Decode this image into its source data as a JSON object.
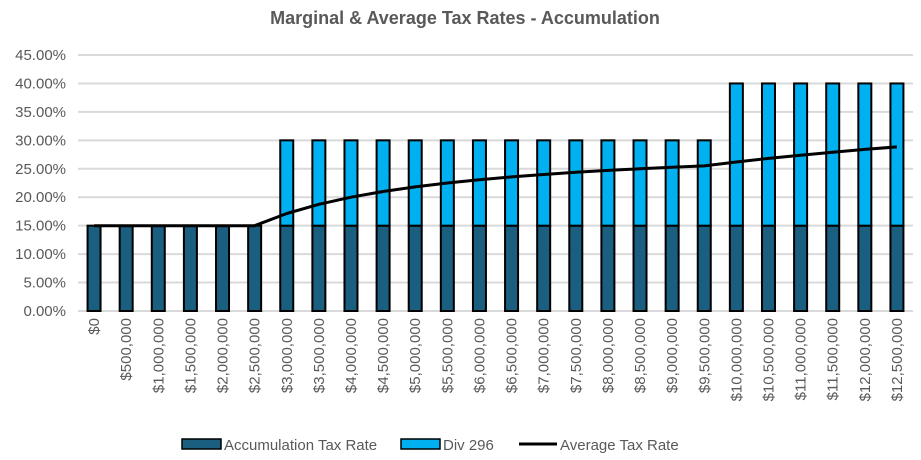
{
  "chart_data": {
    "type": "bar",
    "stacked": true,
    "title": "Marginal & Average Tax Rates - Accumulation",
    "xlabel": "",
    "ylabel": "",
    "ylim": [
      0,
      45
    ],
    "y_ticks": [
      "0.00%",
      "5.00%",
      "10.00%",
      "15.00%",
      "20.00%",
      "25.00%",
      "30.00%",
      "35.00%",
      "40.00%",
      "45.00%"
    ],
    "y_tick_values": [
      0,
      5,
      10,
      15,
      20,
      25,
      30,
      35,
      40,
      45
    ],
    "grid": true,
    "legend_position": "bottom",
    "categories": [
      "$0",
      "$500,000",
      "$1,000,000",
      "$1,500,000",
      "$2,000,000",
      "$2,500,000",
      "$3,000,000",
      "$3,500,000",
      "$4,000,000",
      "$4,500,000",
      "$5,000,000",
      "$5,500,000",
      "$6,000,000",
      "$6,500,000",
      "$7,000,000",
      "$7,500,000",
      "$8,000,000",
      "$8,500,000",
      "$9,000,000",
      "$9,500,000",
      "$10,000,000",
      "$10,500,000",
      "$11,000,000",
      "$11,500,000",
      "$12,000,000",
      "$12,500,000"
    ],
    "series": [
      {
        "name": "Accumulation Tax Rate",
        "kind": "bar",
        "color": "#1a5e80",
        "values": [
          15,
          15,
          15,
          15,
          15,
          15,
          15,
          15,
          15,
          15,
          15,
          15,
          15,
          15,
          15,
          15,
          15,
          15,
          15,
          15,
          15,
          15,
          15,
          15,
          15,
          15
        ]
      },
      {
        "name": "Div 296",
        "kind": "bar",
        "color": "#00b0f0",
        "values": [
          0,
          0,
          0,
          0,
          0,
          0,
          15,
          15,
          15,
          15,
          15,
          15,
          15,
          15,
          15,
          15,
          15,
          15,
          15,
          15,
          25,
          25,
          25,
          25,
          25,
          25
        ]
      },
      {
        "name": "Average Tax Rate",
        "kind": "line",
        "color": "#000000",
        "values": [
          15,
          15,
          15,
          15,
          15,
          15,
          17.14,
          18.75,
          20.0,
          21.0,
          21.82,
          22.5,
          23.08,
          23.57,
          24.0,
          24.38,
          24.71,
          25.0,
          25.26,
          25.5,
          26.19,
          26.82,
          27.39,
          27.92,
          28.4,
          28.85
        ]
      }
    ]
  },
  "legend": {
    "items": [
      {
        "label": "Accumulation Tax Rate",
        "color": "#1a5e80",
        "kind": "bar"
      },
      {
        "label": "Div 296",
        "color": "#00b0f0",
        "kind": "bar"
      },
      {
        "label": "Average Tax Rate",
        "color": "#000000",
        "kind": "line"
      }
    ]
  }
}
